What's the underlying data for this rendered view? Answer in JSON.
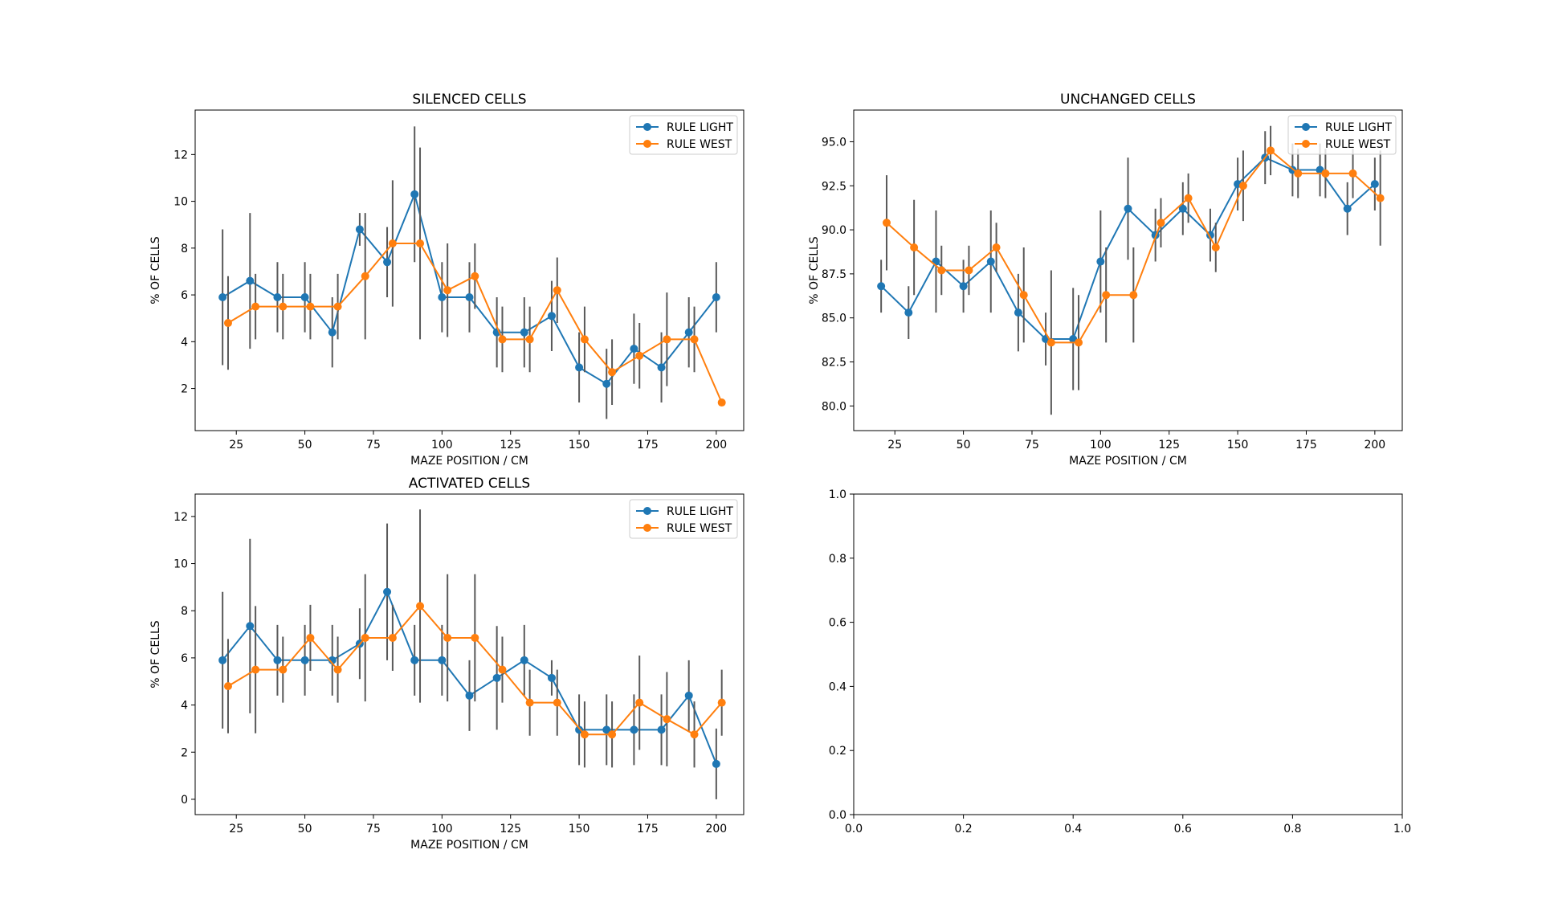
{
  "colors": {
    "rule_light": "#1f77b4",
    "rule_west": "#ff7f0e",
    "error_bar": "#595959",
    "axes": "#000000",
    "background": "#ffffff"
  },
  "chart_data": [
    {
      "id": "silenced",
      "type": "line",
      "title": "SILENCED CELLS",
      "xlabel": "MAZE POSITION / CM",
      "ylabel": "% OF CELLS",
      "xlim": [
        10,
        210
      ],
      "ylim": [
        0.2,
        13.9
      ],
      "xticks": [
        25,
        50,
        75,
        100,
        125,
        150,
        175,
        200
      ],
      "yticks": [
        2,
        4,
        6,
        8,
        10,
        12
      ],
      "legend": "top-right",
      "grid": false,
      "series": [
        {
          "name": "RULE LIGHT",
          "color": "#1f77b4",
          "x": [
            20,
            30,
            40,
            50,
            60,
            70,
            80,
            90,
            100,
            110,
            120,
            130,
            140,
            150,
            160,
            170,
            180,
            190,
            200
          ],
          "y": [
            5.9,
            6.6,
            5.9,
            5.9,
            4.4,
            8.8,
            7.4,
            10.3,
            5.9,
            5.9,
            4.4,
            4.4,
            5.1,
            2.9,
            2.2,
            3.7,
            2.9,
            4.4,
            5.9
          ],
          "err": [
            2.9,
            2.9,
            1.5,
            1.5,
            1.5,
            0.7,
            1.5,
            2.9,
            1.5,
            1.5,
            1.5,
            1.5,
            1.5,
            1.5,
            1.5,
            1.5,
            1.5,
            1.5,
            1.5
          ]
        },
        {
          "name": "RULE WEST",
          "color": "#ff7f0e",
          "x": [
            22,
            32,
            42,
            52,
            62,
            72,
            82,
            92,
            102,
            112,
            122,
            132,
            142,
            152,
            162,
            172,
            182,
            192,
            202
          ],
          "y": [
            4.8,
            5.5,
            5.5,
            5.5,
            5.5,
            6.8,
            8.2,
            8.2,
            6.2,
            6.8,
            4.1,
            4.1,
            6.2,
            4.1,
            2.7,
            3.4,
            4.1,
            4.1,
            1.4
          ],
          "err": [
            2.0,
            1.4,
            1.4,
            1.4,
            1.4,
            2.7,
            2.7,
            4.1,
            2.0,
            1.4,
            1.4,
            1.4,
            1.4,
            1.4,
            1.4,
            1.4,
            2.0,
            1.4,
            0.0
          ]
        }
      ]
    },
    {
      "id": "unchanged",
      "type": "line",
      "title": "UNCHANGED CELLS",
      "xlabel": "MAZE POSITION / CM",
      "ylabel": "% OF CELLS",
      "xlim": [
        10,
        210
      ],
      "ylim": [
        78.6,
        96.8
      ],
      "xticks": [
        25,
        50,
        75,
        100,
        125,
        150,
        175,
        200
      ],
      "yticks": [
        80.0,
        82.5,
        85.0,
        87.5,
        90.0,
        92.5,
        95.0
      ],
      "ytick_labels": [
        "80.0",
        "82.5",
        "85.0",
        "87.5",
        "90.0",
        "92.5",
        "95.0"
      ],
      "legend": "top-right",
      "grid": false,
      "series": [
        {
          "name": "RULE LIGHT",
          "color": "#1f77b4",
          "x": [
            20,
            30,
            40,
            50,
            60,
            70,
            80,
            90,
            100,
            110,
            120,
            130,
            140,
            150,
            160,
            170,
            180,
            190,
            200
          ],
          "y": [
            86.8,
            85.3,
            88.2,
            86.8,
            88.2,
            85.3,
            83.8,
            83.8,
            88.2,
            91.2,
            89.7,
            91.2,
            89.7,
            92.6,
            94.1,
            93.4,
            93.4,
            91.2,
            92.6
          ],
          "err": [
            1.5,
            1.5,
            2.9,
            1.5,
            2.9,
            2.2,
            1.5,
            2.9,
            2.9,
            2.9,
            1.5,
            1.5,
            1.5,
            1.5,
            1.5,
            1.5,
            1.5,
            1.5,
            1.5
          ]
        },
        {
          "name": "RULE WEST",
          "color": "#ff7f0e",
          "x": [
            22,
            32,
            42,
            52,
            62,
            72,
            82,
            92,
            102,
            112,
            122,
            132,
            142,
            152,
            162,
            172,
            182,
            192,
            202
          ],
          "y": [
            90.4,
            89.0,
            87.7,
            87.7,
            89.0,
            86.3,
            83.6,
            83.6,
            86.3,
            86.3,
            90.4,
            91.8,
            89.0,
            92.5,
            94.5,
            93.2,
            93.2,
            93.2,
            91.8
          ],
          "err": [
            2.7,
            2.7,
            1.4,
            1.4,
            1.4,
            2.7,
            4.1,
            2.7,
            2.7,
            2.7,
            1.4,
            1.4,
            1.4,
            2.0,
            1.4,
            1.4,
            1.4,
            1.4,
            2.7
          ]
        }
      ]
    },
    {
      "id": "activated",
      "type": "line",
      "title": "ACTIVATED CELLS",
      "xlabel": "MAZE POSITION / CM",
      "ylabel": "% OF CELLS",
      "xlim": [
        10,
        210
      ],
      "ylim": [
        -0.65,
        12.95
      ],
      "xticks": [
        25,
        50,
        75,
        100,
        125,
        150,
        175,
        200
      ],
      "yticks": [
        0,
        2,
        4,
        6,
        8,
        10,
        12
      ],
      "legend": "top-right",
      "grid": false,
      "series": [
        {
          "name": "RULE LIGHT",
          "color": "#1f77b4",
          "x": [
            20,
            30,
            40,
            50,
            60,
            70,
            80,
            90,
            100,
            110,
            120,
            130,
            140,
            150,
            160,
            170,
            180,
            190,
            200
          ],
          "y": [
            5.9,
            7.35,
            5.9,
            5.9,
            5.9,
            6.6,
            8.8,
            5.9,
            5.9,
            4.4,
            5.15,
            5.9,
            5.15,
            2.95,
            2.95,
            2.95,
            2.95,
            4.4,
            1.5
          ],
          "err": [
            2.9,
            3.7,
            1.5,
            1.5,
            1.5,
            1.5,
            2.9,
            1.5,
            1.5,
            1.5,
            2.2,
            1.5,
            0.75,
            1.5,
            1.5,
            1.5,
            1.5,
            1.5,
            1.5
          ]
        },
        {
          "name": "RULE WEST",
          "color": "#ff7f0e",
          "x": [
            22,
            32,
            42,
            52,
            62,
            72,
            82,
            92,
            102,
            112,
            122,
            132,
            142,
            152,
            162,
            172,
            182,
            192,
            202
          ],
          "y": [
            4.8,
            5.5,
            5.5,
            6.85,
            5.5,
            6.85,
            6.85,
            8.2,
            6.85,
            6.85,
            5.5,
            4.1,
            4.1,
            2.75,
            2.75,
            4.1,
            3.4,
            2.75,
            4.1
          ],
          "err": [
            2.0,
            2.7,
            1.4,
            1.4,
            1.4,
            2.7,
            1.4,
            4.1,
            2.7,
            2.7,
            1.4,
            1.4,
            1.4,
            1.4,
            1.4,
            2.0,
            2.0,
            1.4,
            1.4
          ]
        }
      ]
    },
    {
      "id": "empty",
      "type": "line",
      "title": "",
      "xlabel": "",
      "ylabel": "",
      "xlim": [
        0,
        1
      ],
      "ylim": [
        0,
        1
      ],
      "xticks": [
        0,
        0.2,
        0.4,
        0.6,
        0.8,
        1.0
      ],
      "xtick_labels": [
        "0.0",
        "0.2",
        "0.4",
        "0.6",
        "0.8",
        "1.0"
      ],
      "yticks": [
        0,
        0.2,
        0.4,
        0.6,
        0.8,
        1.0
      ],
      "ytick_labels": [
        "0.0",
        "0.2",
        "0.4",
        "0.6",
        "0.8",
        "1.0"
      ],
      "grid": false,
      "series": []
    }
  ]
}
